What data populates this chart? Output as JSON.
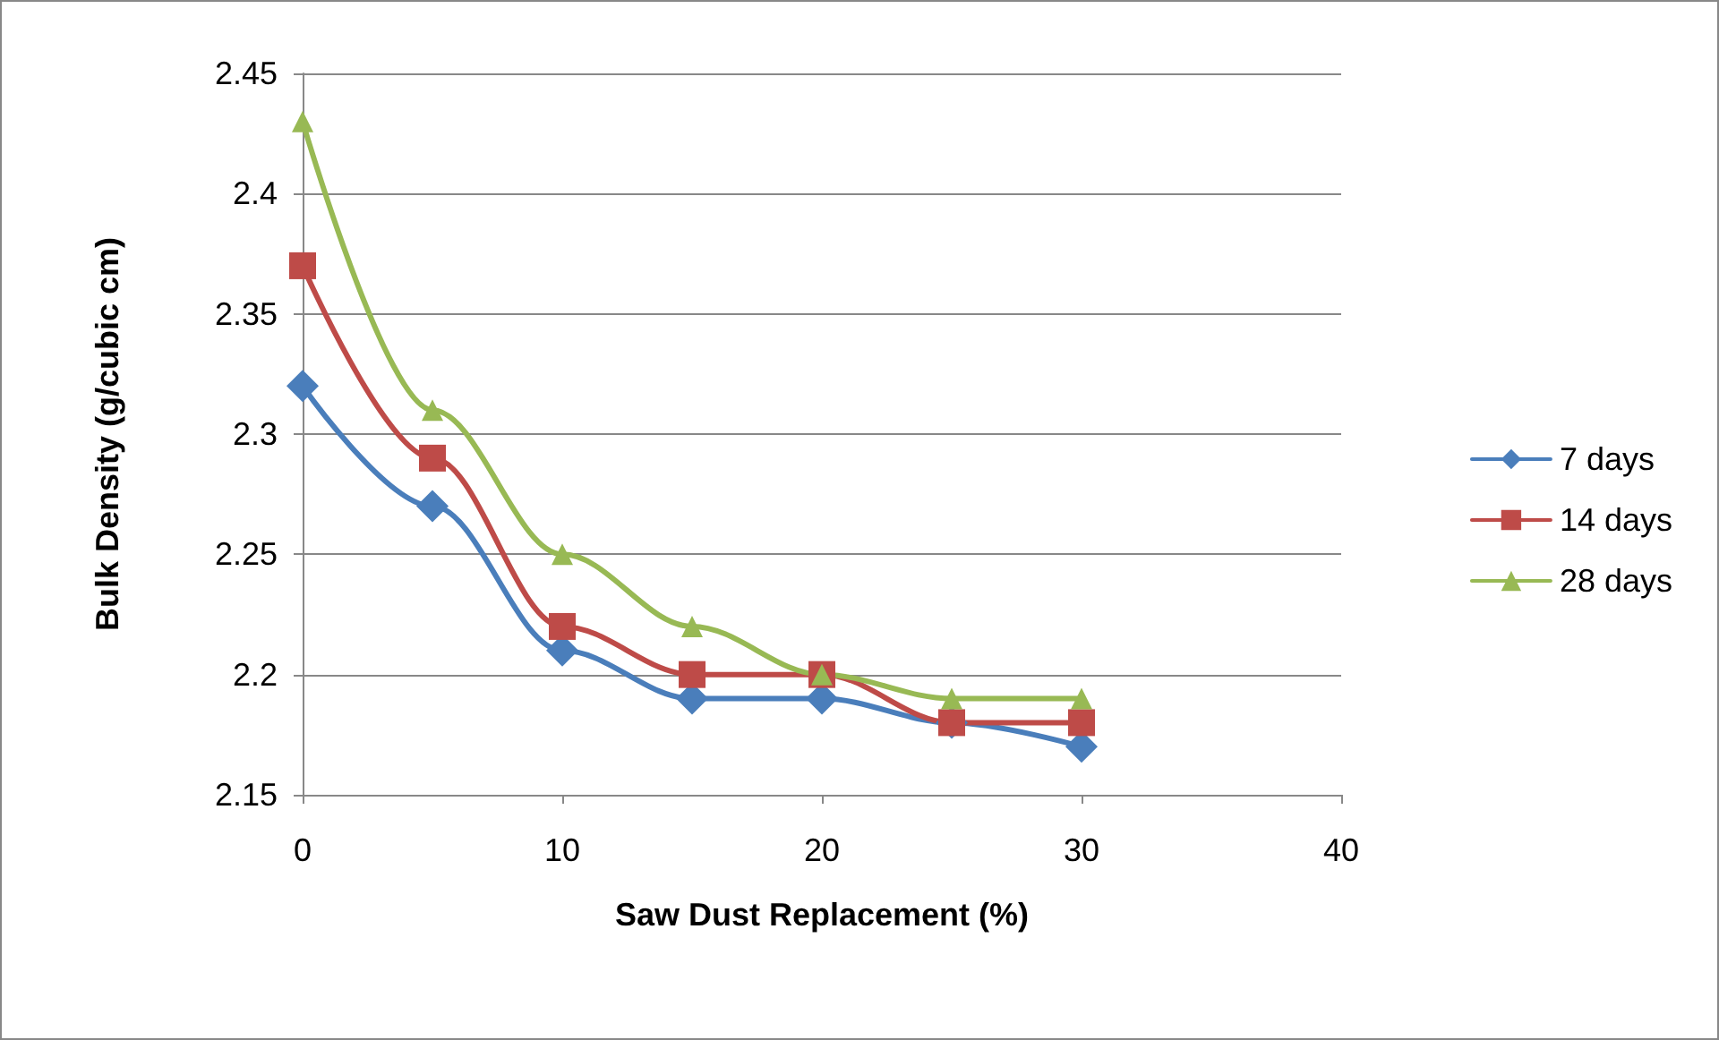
{
  "chart_data": {
    "type": "line",
    "xlabel": "Saw Dust Replacement (%)",
    "ylabel": "Bulk Density (g/cubic cm)",
    "x": [
      0,
      5,
      10,
      15,
      20,
      25,
      30
    ],
    "series": [
      {
        "name": "7 days",
        "color": "#4a7ebb",
        "marker": "diamond",
        "values": [
          2.32,
          2.27,
          2.21,
          2.19,
          2.19,
          2.18,
          2.17
        ]
      },
      {
        "name": "14 days",
        "color": "#be4b48",
        "marker": "square",
        "values": [
          2.37,
          2.29,
          2.22,
          2.2,
          2.2,
          2.18,
          2.18
        ]
      },
      {
        "name": "28 days",
        "color": "#98b954",
        "marker": "triangle",
        "values": [
          2.43,
          2.31,
          2.25,
          2.22,
          2.2,
          2.19,
          2.19
        ]
      }
    ],
    "xlim": [
      0,
      40
    ],
    "xticks": [
      0,
      10,
      20,
      30,
      40
    ],
    "ylim": [
      2.15,
      2.45
    ],
    "yticks": [
      2.15,
      2.2,
      2.25,
      2.3,
      2.35,
      2.4,
      2.45
    ],
    "grid": "y",
    "legend": "right",
    "line_style": "solid"
  }
}
